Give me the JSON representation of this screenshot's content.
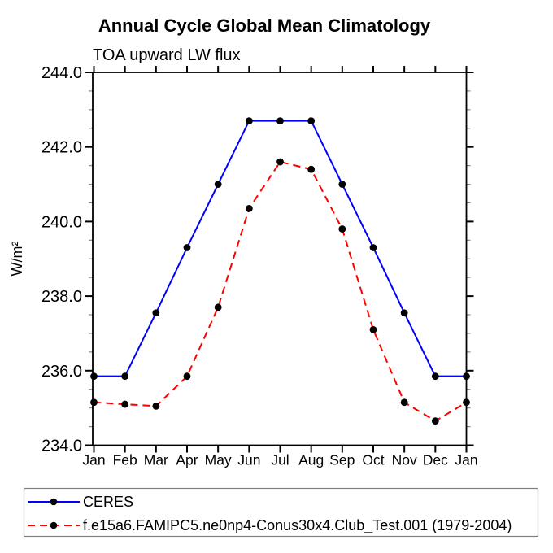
{
  "page": {
    "background": "#ffffff"
  },
  "chart_data": {
    "type": "line",
    "title": "Annual Cycle Global Mean Climatology",
    "subtitle": "TOA upward LW flux",
    "ylabel": "W/m²",
    "xlabel": "",
    "categories": [
      "Jan",
      "Feb",
      "Mar",
      "Apr",
      "May",
      "Jun",
      "Jul",
      "Aug",
      "Sep",
      "Oct",
      "Nov",
      "Dec",
      "Jan"
    ],
    "series": [
      {
        "name": "CERES",
        "color": "#0000ff",
        "line_style": "solid",
        "marker": "filled-circle",
        "marker_color": "#000000",
        "values": [
          235.85,
          235.85,
          237.55,
          239.3,
          241.0,
          242.7,
          242.7,
          242.7,
          241.0,
          239.3,
          237.55,
          235.85,
          235.85
        ]
      },
      {
        "name": "f.e15a6.FAMIPC5.ne0np4-Conus30x4.Club_Test.001 (1979-2004)",
        "color": "#ff0000",
        "line_style": "dashed",
        "marker": "filled-circle",
        "marker_color": "#000000",
        "values": [
          235.15,
          235.1,
          235.05,
          235.85,
          237.7,
          240.35,
          241.6,
          241.4,
          239.8,
          237.1,
          235.15,
          234.65,
          235.15
        ]
      }
    ],
    "ylim": [
      234.0,
      244.0
    ],
    "ytick_values": [
      234,
      236,
      238,
      240,
      242,
      244
    ],
    "ytick_labels": [
      "234.0",
      "236.0",
      "238.0",
      "240.0",
      "242.0",
      "244.0"
    ],
    "yminor_step": 0.5,
    "grid": "off",
    "legend_position": "bottom-left"
  },
  "colors": {
    "axis": "#000000",
    "minor_tick": "#8a8a8a",
    "legend_border": "#7f7f7f",
    "text": "#000000"
  }
}
